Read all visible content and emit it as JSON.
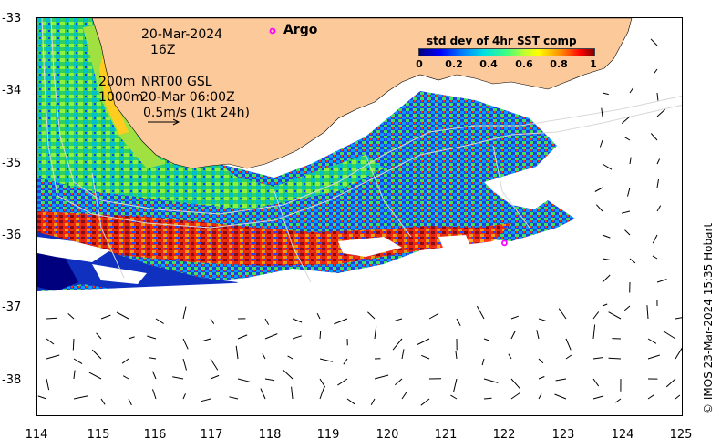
{
  "map": {
    "date": "20-Mar-2024",
    "hour": "16Z",
    "depth_label_1": "200m",
    "depth_label_2": "1000m",
    "product": "NRT00 GSL",
    "product_time": "20-Mar 06:00Z",
    "scale_text": "0.5m/s (1kt 24h)",
    "legend_argo": "Argo",
    "colorbar_title": "std dev of 4hr SST comp",
    "colorbar_ticks": [
      "0",
      "0.2",
      "0.4",
      "0.6",
      "0.8",
      "1"
    ],
    "credit": "© IMOS 23-Mar-2024 15:35 Hobart",
    "lat_labels": [
      "-33",
      "-34",
      "-35",
      "-36",
      "-37",
      "-38"
    ],
    "lon_labels": [
      "114",
      "115",
      "116",
      "117",
      "118",
      "119",
      "120",
      "121",
      "122",
      "123",
      "124",
      "125"
    ],
    "lon_range": [
      114,
      125
    ],
    "lat_range": [
      -38.5,
      -33
    ],
    "argo_float": {
      "lon": 121.95,
      "lat": -36.1
    },
    "colors": {
      "land": "#fcc99a",
      "argo": "#ff00ff",
      "contour": "#cccccc"
    }
  }
}
